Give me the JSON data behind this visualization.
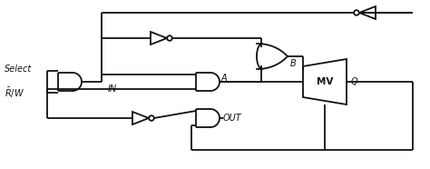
{
  "line_color": "#111111",
  "lw": 1.3,
  "labels": {
    "select": "Select",
    "rw": "$\\bar{R}/W$",
    "in": "IN",
    "out": "OUT",
    "a": "A",
    "b": "B",
    "q": "Q",
    "mv": "MV"
  },
  "font_size": 7.5
}
